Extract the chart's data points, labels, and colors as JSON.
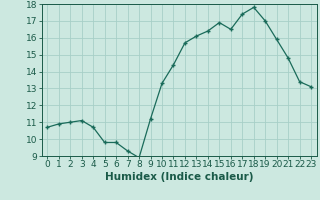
{
  "x": [
    0,
    1,
    2,
    3,
    4,
    5,
    6,
    7,
    8,
    9,
    10,
    11,
    12,
    13,
    14,
    15,
    16,
    17,
    18,
    19,
    20,
    21,
    22,
    23
  ],
  "y": [
    10.7,
    10.9,
    11.0,
    11.1,
    10.7,
    9.8,
    9.8,
    9.3,
    8.9,
    11.2,
    13.3,
    14.4,
    15.7,
    16.1,
    16.4,
    16.9,
    16.5,
    17.4,
    17.8,
    17.0,
    15.9,
    14.8,
    13.4,
    13.1
  ],
  "xlabel": "Humidex (Indice chaleur)",
  "ylim": [
    9,
    18
  ],
  "xlim": [
    -0.5,
    23.5
  ],
  "yticks": [
    9,
    10,
    11,
    12,
    13,
    14,
    15,
    16,
    17,
    18
  ],
  "xticks": [
    0,
    1,
    2,
    3,
    4,
    5,
    6,
    7,
    8,
    9,
    10,
    11,
    12,
    13,
    14,
    15,
    16,
    17,
    18,
    19,
    20,
    21,
    22,
    23
  ],
  "line_color": "#1a6b5a",
  "marker_color": "#1a6b5a",
  "bg_color": "#cce8e0",
  "grid_color": "#a8cfc7",
  "tick_label_color": "#1a5a48",
  "xlabel_color": "#1a5a48",
  "tick_fontsize": 6.5,
  "xlabel_fontsize": 7.5
}
